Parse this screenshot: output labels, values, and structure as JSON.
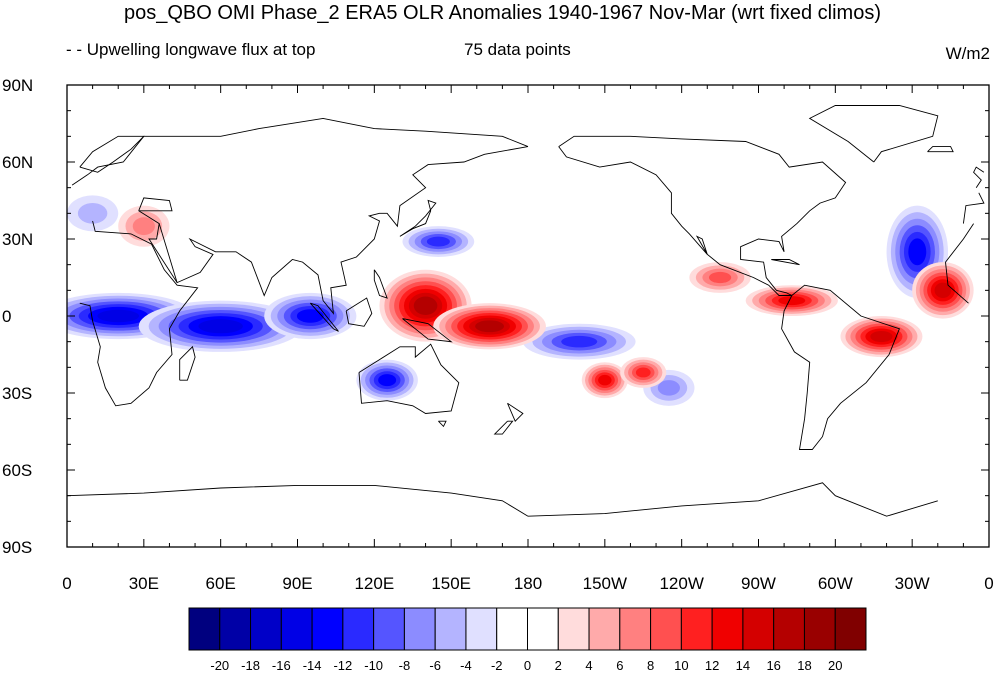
{
  "title": "pos_QBO OMI Phase_2 ERA5 OLR Anomalies 1940-1967 Nov-Mar (wrt fixed climos)",
  "subtitle_left": "- - Upwelling longwave flux at top",
  "subtitle_center": "75 data points",
  "units": "W/m2",
  "y_tick_labels": [
    "90N",
    "60N",
    "30N",
    "0",
    "30S",
    "60S",
    "90S"
  ],
  "x_tick_labels": [
    "0",
    "30E",
    "60E",
    "90E",
    "120E",
    "150E",
    "180",
    "150W",
    "120W",
    "90W",
    "60W",
    "30W",
    "0"
  ],
  "colorbar": {
    "labels": [
      "-20",
      "-18",
      "-16",
      "-14",
      "-12",
      "-10",
      "-8",
      "-6",
      "-4",
      "-2",
      "0",
      "2",
      "4",
      "6",
      "8",
      "10",
      "12",
      "14",
      "16",
      "18",
      "20"
    ],
    "colors": [
      "#00007f",
      "#0000a6",
      "#0000c8",
      "#0000e6",
      "#0000ff",
      "#2a2aff",
      "#5555ff",
      "#8c8cff",
      "#b4b4ff",
      "#e0e0ff",
      "#ffffff",
      "#ffffff",
      "#ffdcdc",
      "#ffaaaa",
      "#ff8080",
      "#ff5050",
      "#ff2020",
      "#f00000",
      "#d40000",
      "#b40000",
      "#990000",
      "#800000"
    ]
  },
  "chart_data": {
    "type": "heatmap",
    "title": "pos_QBO OMI Phase_2 ERA5 OLR Anomalies 1940-1967 Nov-Mar (wrt fixed climos)",
    "variable": "Upwelling longwave flux at top",
    "units": "W/m2",
    "n_points": 75,
    "lon_range": [
      0,
      360
    ],
    "lat_range": [
      -90,
      90
    ],
    "levels": [
      -20,
      -18,
      -16,
      -14,
      -12,
      -10,
      -8,
      -6,
      -4,
      -2,
      0,
      2,
      4,
      6,
      8,
      10,
      12,
      14,
      16,
      18,
      20
    ],
    "features": [
      {
        "lon": 20,
        "lat": 0,
        "rx": 30,
        "ry": 9,
        "value": -16
      },
      {
        "lon": 60,
        "lat": -4,
        "rx": 32,
        "ry": 10,
        "value": -16
      },
      {
        "lon": 95,
        "lat": 0,
        "rx": 18,
        "ry": 9,
        "value": -13
      },
      {
        "lon": 125,
        "lat": -25,
        "rx": 12,
        "ry": 8,
        "value": -14
      },
      {
        "lon": 145,
        "lat": 29,
        "rx": 14,
        "ry": 6,
        "value": -12
      },
      {
        "lon": 200,
        "lat": -10,
        "rx": 22,
        "ry": 7,
        "value": -12
      },
      {
        "lon": 235,
        "lat": -28,
        "rx": 10,
        "ry": 7,
        "value": -8
      },
      {
        "lon": 332,
        "lat": 25,
        "rx": 12,
        "ry": 18,
        "value": -14
      },
      {
        "lon": 10,
        "lat": 40,
        "rx": 10,
        "ry": 7,
        "value": -6
      },
      {
        "lon": 140,
        "lat": 4,
        "rx": 18,
        "ry": 14,
        "value": 18
      },
      {
        "lon": 165,
        "lat": -4,
        "rx": 22,
        "ry": 9,
        "value": 17
      },
      {
        "lon": 210,
        "lat": -25,
        "rx": 9,
        "ry": 7,
        "value": 14
      },
      {
        "lon": 225,
        "lat": -22,
        "rx": 9,
        "ry": 6,
        "value": 12
      },
      {
        "lon": 255,
        "lat": 15,
        "rx": 12,
        "ry": 6,
        "value": 10
      },
      {
        "lon": 283,
        "lat": 6,
        "rx": 18,
        "ry": 6,
        "value": 14
      },
      {
        "lon": 318,
        "lat": -8,
        "rx": 16,
        "ry": 8,
        "value": 16
      },
      {
        "lon": 342,
        "lat": 10,
        "rx": 12,
        "ry": 11,
        "value": 15
      },
      {
        "lon": 30,
        "lat": 35,
        "rx": 10,
        "ry": 8,
        "value": 8
      }
    ]
  }
}
